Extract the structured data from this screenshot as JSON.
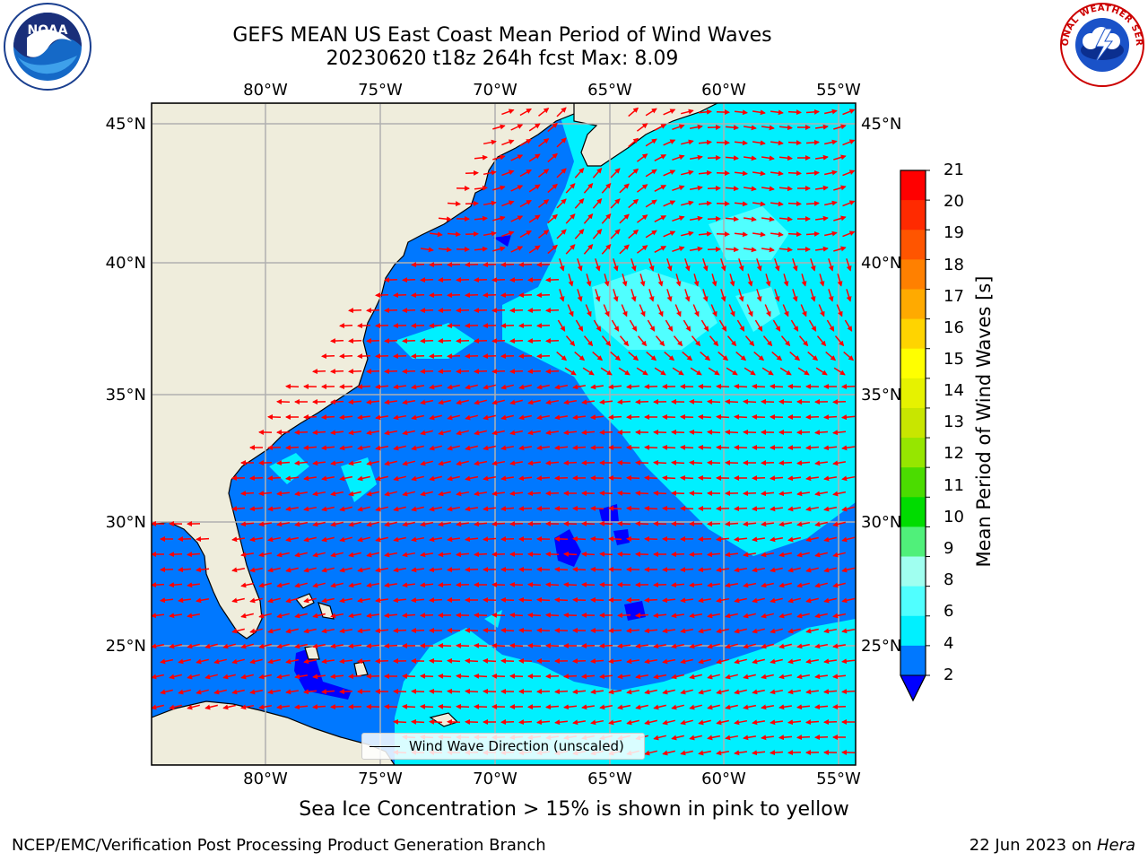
{
  "title": {
    "line1": "GEFS MEAN US East Coast Mean Period of Wind Waves",
    "line2": "20230620 t18z 264h fcst   Max: 8.09"
  },
  "map": {
    "lon_ticks": [
      "80°W",
      "75°W",
      "70°W",
      "65°W",
      "60°W",
      "55°W"
    ],
    "lat_ticks": [
      "45°N",
      "40°N",
      "35°N",
      "30°N",
      "25°N"
    ],
    "gridlines": true,
    "vectors_color": "#ff0000",
    "land_color": "#efeddc",
    "coast_color": "#000000"
  },
  "colorbar": {
    "title": "Mean Period of Wind Waves [s]",
    "ticks": [
      "21",
      "20",
      "19",
      "18",
      "17",
      "16",
      "15",
      "14",
      "13",
      "12",
      "11",
      "10",
      "9",
      "8",
      "6",
      "4",
      "2"
    ],
    "colors": [
      "#ff0000",
      "#ff2a00",
      "#ff5500",
      "#ff8000",
      "#ffaa00",
      "#ffd400",
      "#ffff00",
      "#e6f200",
      "#c8e600",
      "#96e600",
      "#4bdc00",
      "#00dc00",
      "#50f07a",
      "#a0fff0",
      "#50ffff",
      "#00f0ff",
      "#0078ff"
    ],
    "extend_color": "#0000ff"
  },
  "legend": {
    "label": "Wind Wave Direction (unscaled)"
  },
  "notes": {
    "sea_ice": "Sea Ice Concentration > 15% is shown in pink to yellow",
    "footer_left": "NCEP/EMC/Verification Post Processing Product Generation Branch",
    "footer_date": "22 Jun 2023 on ",
    "footer_machine": "Hera"
  },
  "logos": {
    "left": "NOAA",
    "right": "NATIONAL WEATHER SERVICE"
  }
}
